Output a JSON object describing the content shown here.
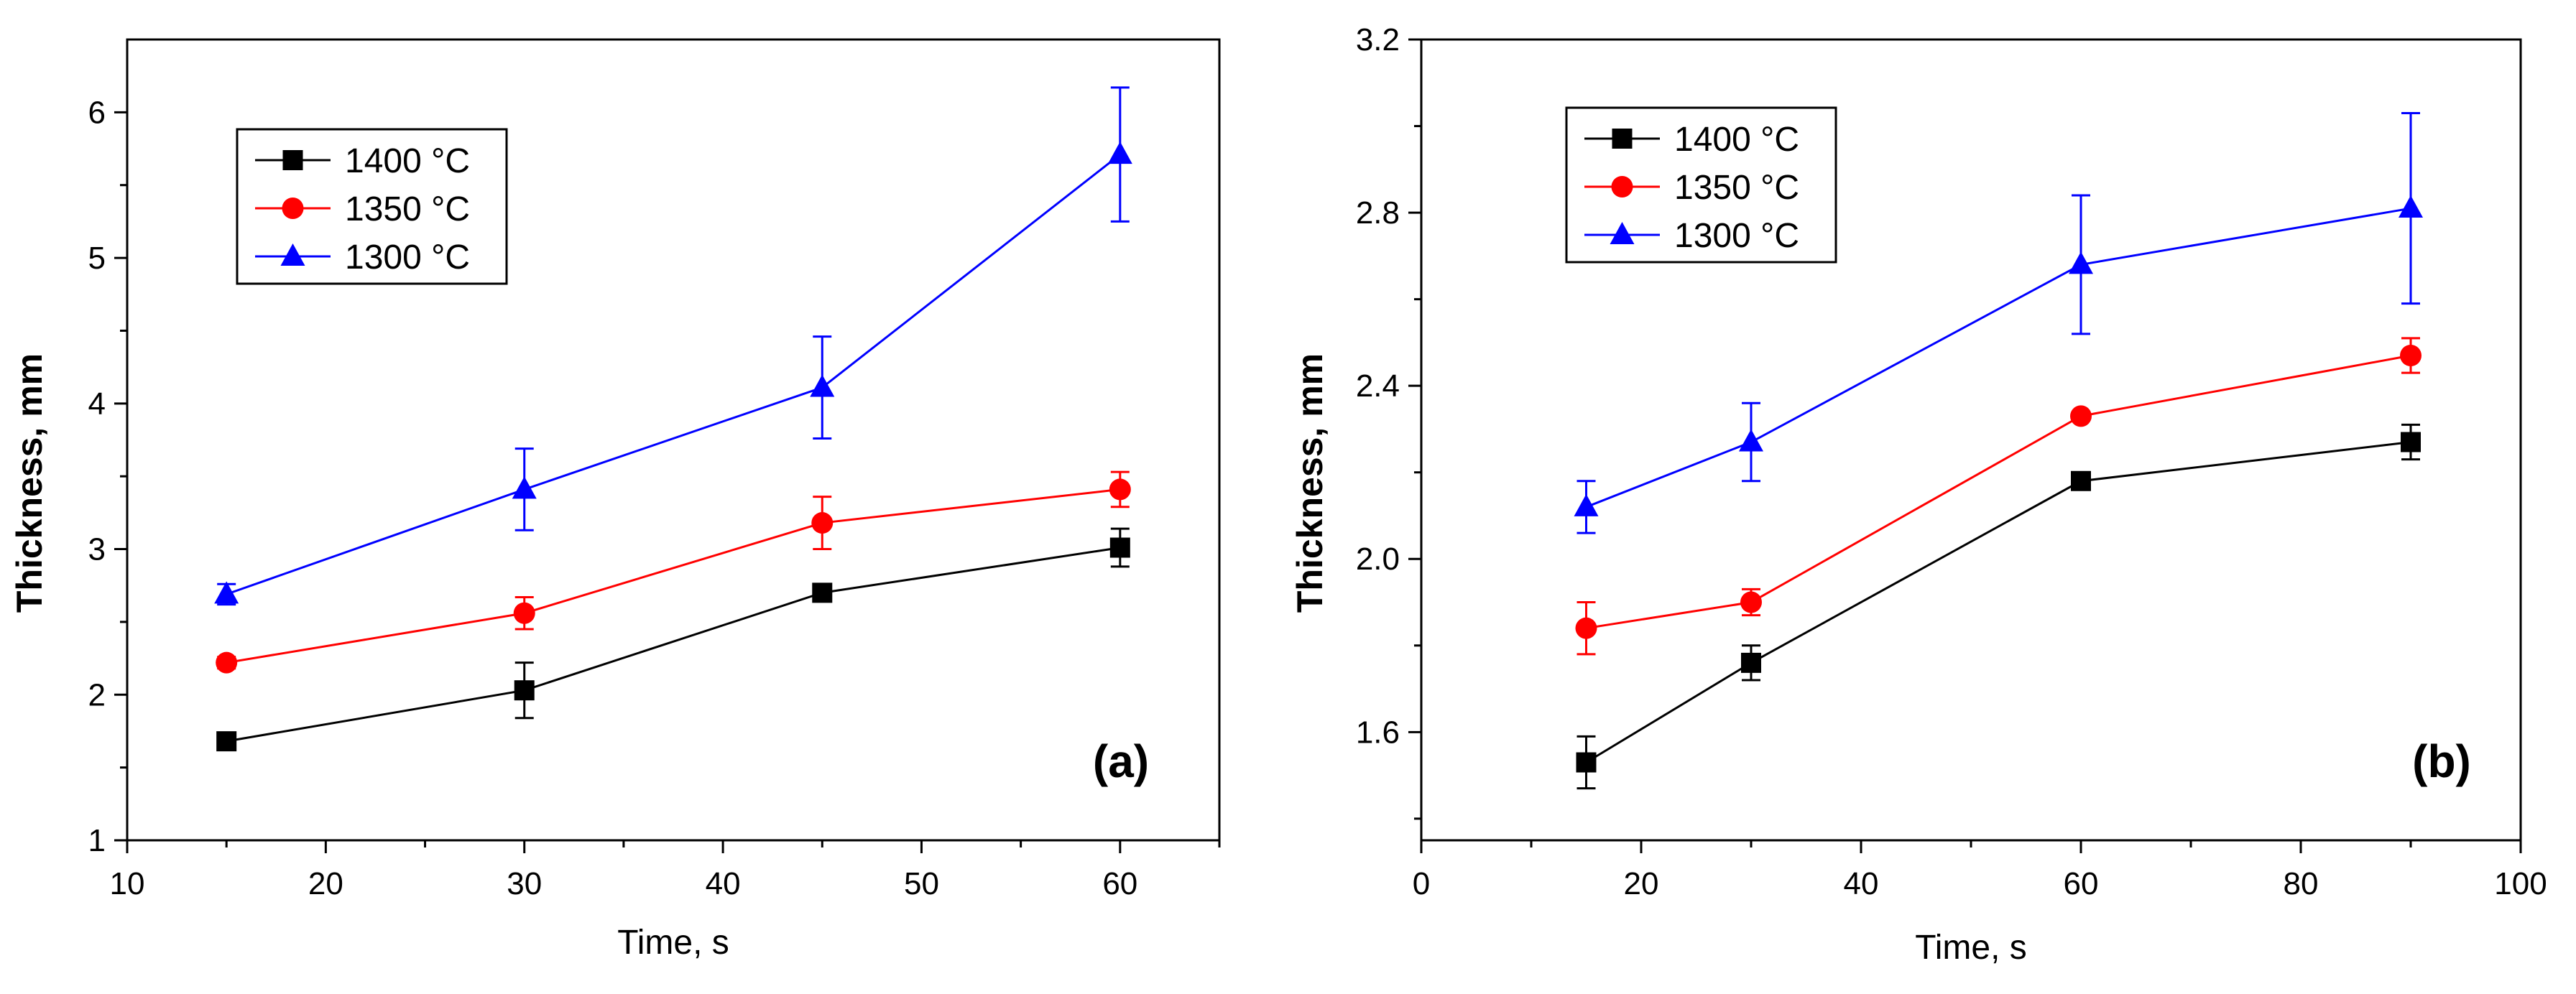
{
  "chart_data": [
    {
      "type": "line",
      "panel_label": "(a)",
      "xlabel": "Time, s",
      "ylabel": "Thickness, mm",
      "xlim": [
        10,
        65
      ],
      "ylim": [
        1,
        6.5
      ],
      "xticks": [
        10,
        20,
        30,
        40,
        50,
        60
      ],
      "yticks": [
        1,
        2,
        3,
        4,
        5,
        6
      ],
      "legend_position": "top-left",
      "grid": false,
      "x": [
        15,
        30,
        45,
        60
      ],
      "series": [
        {
          "name": "1400 °C",
          "color": "#000000",
          "marker": "square",
          "values": [
            1.68,
            2.03,
            2.7,
            3.01
          ],
          "errors": [
            0.04,
            0.19,
            0.04,
            0.13
          ]
        },
        {
          "name": "1350 °C",
          "color": "#ff0000",
          "marker": "circle",
          "values": [
            2.22,
            2.56,
            3.18,
            3.41
          ],
          "errors": [
            0.04,
            0.11,
            0.18,
            0.12
          ]
        },
        {
          "name": "1300 °C",
          "color": "#0000ff",
          "marker": "triangle",
          "values": [
            2.69,
            3.41,
            4.11,
            5.71
          ],
          "errors": [
            0.07,
            0.28,
            0.35,
            0.46
          ]
        }
      ]
    },
    {
      "type": "line",
      "panel_label": "(b)",
      "xlabel": "Time, s",
      "ylabel": "Thickness, mm",
      "xlim": [
        0,
        100
      ],
      "ylim": [
        1.35,
        3.2
      ],
      "xticks": [
        0,
        20,
        40,
        60,
        80,
        100
      ],
      "yticks": [
        1.6,
        2.0,
        2.4,
        2.8,
        3.2
      ],
      "ytick_labels": [
        "1.6",
        "2.0",
        "2.4",
        "2.8",
        "3.2"
      ],
      "legend_position": "top-left",
      "grid": false,
      "x": [
        15,
        30,
        60,
        90
      ],
      "series": [
        {
          "name": "1400 °C",
          "color": "#000000",
          "marker": "square",
          "values": [
            1.53,
            1.76,
            2.18,
            2.27
          ],
          "errors": [
            0.06,
            0.04,
            0.01,
            0.04
          ]
        },
        {
          "name": "1350 °C",
          "color": "#ff0000",
          "marker": "circle",
          "values": [
            1.84,
            1.9,
            2.33,
            2.47
          ],
          "errors": [
            0.06,
            0.03,
            0.01,
            0.04
          ]
        },
        {
          "name": "1300 °C",
          "color": "#0000ff",
          "marker": "triangle",
          "values": [
            2.12,
            2.27,
            2.68,
            2.81
          ],
          "errors": [
            0.06,
            0.09,
            0.16,
            0.22
          ]
        }
      ]
    }
  ]
}
